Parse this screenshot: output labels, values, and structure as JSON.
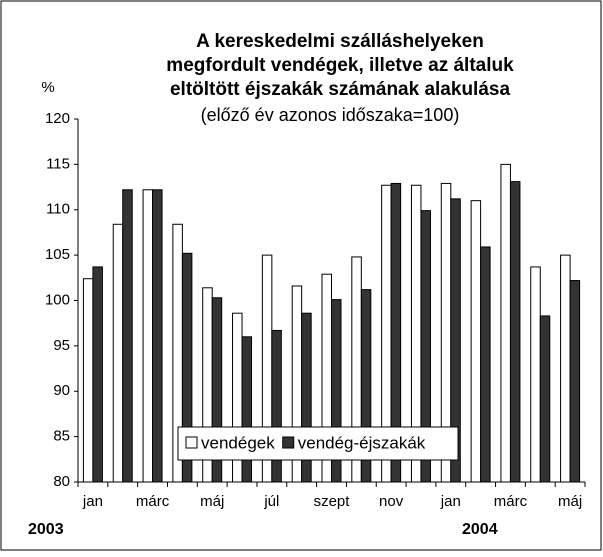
{
  "chart_data": {
    "type": "bar",
    "title": [
      "A kereskedelmi szálláshelyeken",
      "megfordult vendégek, illetve az általuk",
      "eltöltött éjszakák számának alakulása"
    ],
    "subtitle": "(előző év azonos időszaka=100)",
    "y_label": "%",
    "categories": [
      "jan",
      null,
      "márc",
      null,
      "máj",
      null,
      "júl",
      null,
      "szept",
      null,
      "nov",
      null,
      "jan",
      null,
      "márc",
      null,
      "máj"
    ],
    "year_labels": [
      "2003",
      "2004"
    ],
    "series": [
      {
        "name": "vendégek",
        "color": "#ffffff",
        "values": [
          102.4,
          108.4,
          112.2,
          108.4,
          101.4,
          98.6,
          105.0,
          101.6,
          102.9,
          104.8,
          112.7,
          112.7,
          112.9,
          111.0,
          115.0,
          103.7,
          105.0
        ]
      },
      {
        "name": "vendég-éjszakák",
        "color": "#333333",
        "values": [
          103.7,
          112.2,
          112.2,
          105.2,
          100.3,
          96.0,
          96.7,
          98.6,
          100.1,
          101.2,
          112.9,
          109.9,
          111.2,
          105.9,
          113.1,
          98.3,
          102.2
        ]
      }
    ],
    "ylim": [
      80,
      120
    ],
    "yticks": [
      80,
      85,
      90,
      95,
      100,
      105,
      110,
      115,
      120
    ],
    "grid": false
  }
}
